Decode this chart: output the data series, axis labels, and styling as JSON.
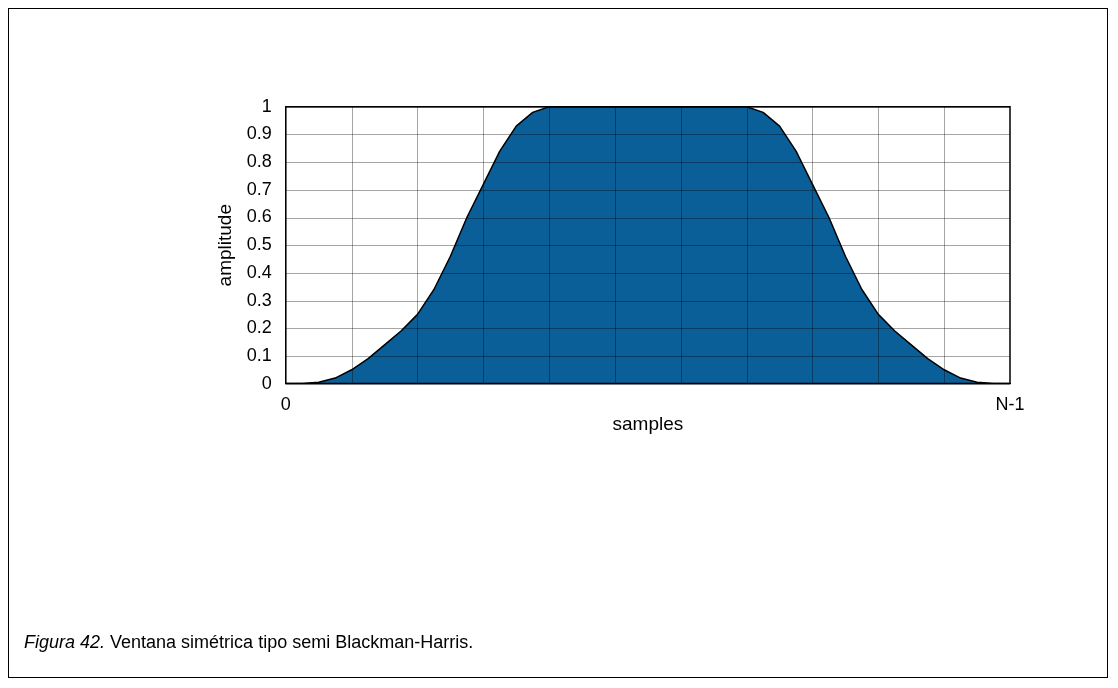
{
  "chart_data": {
    "type": "area",
    "xlabel": "samples",
    "ylabel": "amplitude",
    "annotations": [
      "Figura 42. Ventana simétrica tipo semi Blackman-Harris."
    ],
    "categories": [
      "0",
      null,
      null,
      null,
      null,
      null,
      null,
      null,
      null,
      null,
      null,
      null,
      null,
      null,
      null,
      null,
      null,
      null,
      null,
      null,
      null,
      null,
      null,
      null,
      null,
      null,
      null,
      null,
      null,
      null,
      null,
      null,
      null,
      null,
      null,
      null,
      null,
      null,
      null,
      null,
      null,
      null,
      null,
      null,
      "N-1"
    ],
    "series": [
      {
        "color": "#0b5f99",
        "values": [
          0,
          0,
          0.005,
          0.02,
          0.05,
          0.09,
          0.14,
          0.19,
          0.25,
          0.34,
          0.46,
          0.6,
          0.72,
          0.84,
          0.93,
          0.98,
          1,
          1,
          1,
          1,
          1,
          1,
          1,
          1,
          1,
          1,
          1,
          1,
          1,
          0.98,
          0.93,
          0.84,
          0.72,
          0.6,
          0.46,
          0.34,
          0.25,
          0.19,
          0.14,
          0.09,
          0.05,
          0.02,
          0.005,
          0,
          0
        ]
      }
    ],
    "ylim": [
      0,
      1
    ],
    "yticks": [
      0,
      0.1,
      0.2,
      0.3,
      0.4,
      0.5,
      0.6,
      0.7,
      0.8,
      0.9,
      1
    ],
    "grid": true,
    "legend": false
  }
}
